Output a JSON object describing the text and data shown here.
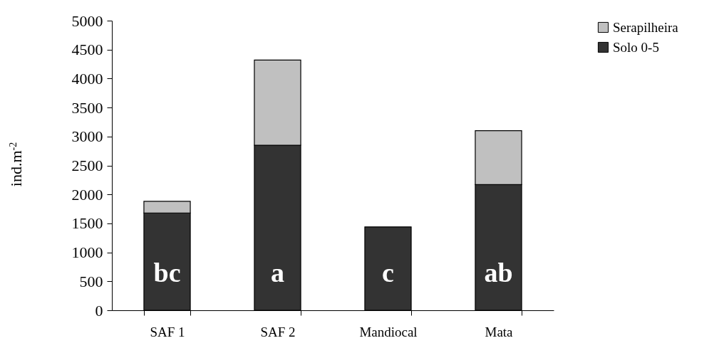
{
  "chart_data": {
    "type": "bar",
    "stacked": true,
    "ylabel": "ind.m$^{-2}$",
    "categories": [
      "SAF 1",
      "SAF 2",
      "Mandiocal",
      "Mata"
    ],
    "series": [
      {
        "name": "Solo 0-5",
        "color": "#333333",
        "values": [
          1680,
          2850,
          1440,
          2170
        ]
      },
      {
        "name": "Serapilheira",
        "color": "#c0c0c0",
        "values": [
          200,
          1470,
          null,
          930
        ]
      }
    ],
    "ylim": [
      0,
      5000
    ],
    "yticks": [
      0,
      500,
      1000,
      1500,
      2000,
      2500,
      3000,
      3500,
      4000,
      4500,
      5000
    ],
    "grid": false,
    "legend": "right",
    "annotations": [
      "bc",
      "a",
      "c",
      "ab"
    ]
  }
}
